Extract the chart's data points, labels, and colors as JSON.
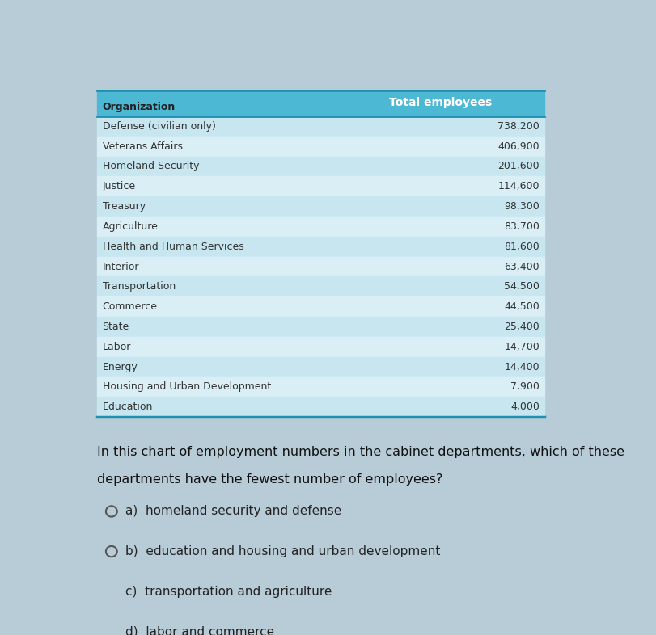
{
  "title": "Total employees",
  "col_org": "Organization",
  "rows": [
    [
      "Defense (civilian only)",
      "738,200"
    ],
    [
      "Veterans Affairs",
      "406,900"
    ],
    [
      "Homeland Security",
      "201,600"
    ],
    [
      "Justice",
      "114,600"
    ],
    [
      "Treasury",
      "98,300"
    ],
    [
      "Agriculture",
      "83,700"
    ],
    [
      "Health and Human Services",
      "81,600"
    ],
    [
      "Interior",
      "63,400"
    ],
    [
      "Transportation",
      "54,500"
    ],
    [
      "Commerce",
      "44,500"
    ],
    [
      "State",
      "25,400"
    ],
    [
      "Labor",
      "14,700"
    ],
    [
      "Energy",
      "14,400"
    ],
    [
      "Housing and Urban Development",
      "7,900"
    ],
    [
      "Education",
      "4,000"
    ]
  ],
  "header_bg": "#4db8d4",
  "row_bg_even": "#c8e6f0",
  "row_bg_odd": "#daeef6",
  "outer_bg": "#b8ccd8",
  "row_text_color": "#333333",
  "title_fontsize": 10,
  "label_fontsize": 9,
  "value_fontsize": 9,
  "question_text1": "In this chart of employment numbers in the cabinet departments, which of these",
  "question_text2": "departments have the fewest number of employees?",
  "choices": [
    "a)  homeland security and defense",
    "b)  education and housing and urban development",
    "c)  transportation and agriculture",
    "d)  labor and commerce"
  ]
}
